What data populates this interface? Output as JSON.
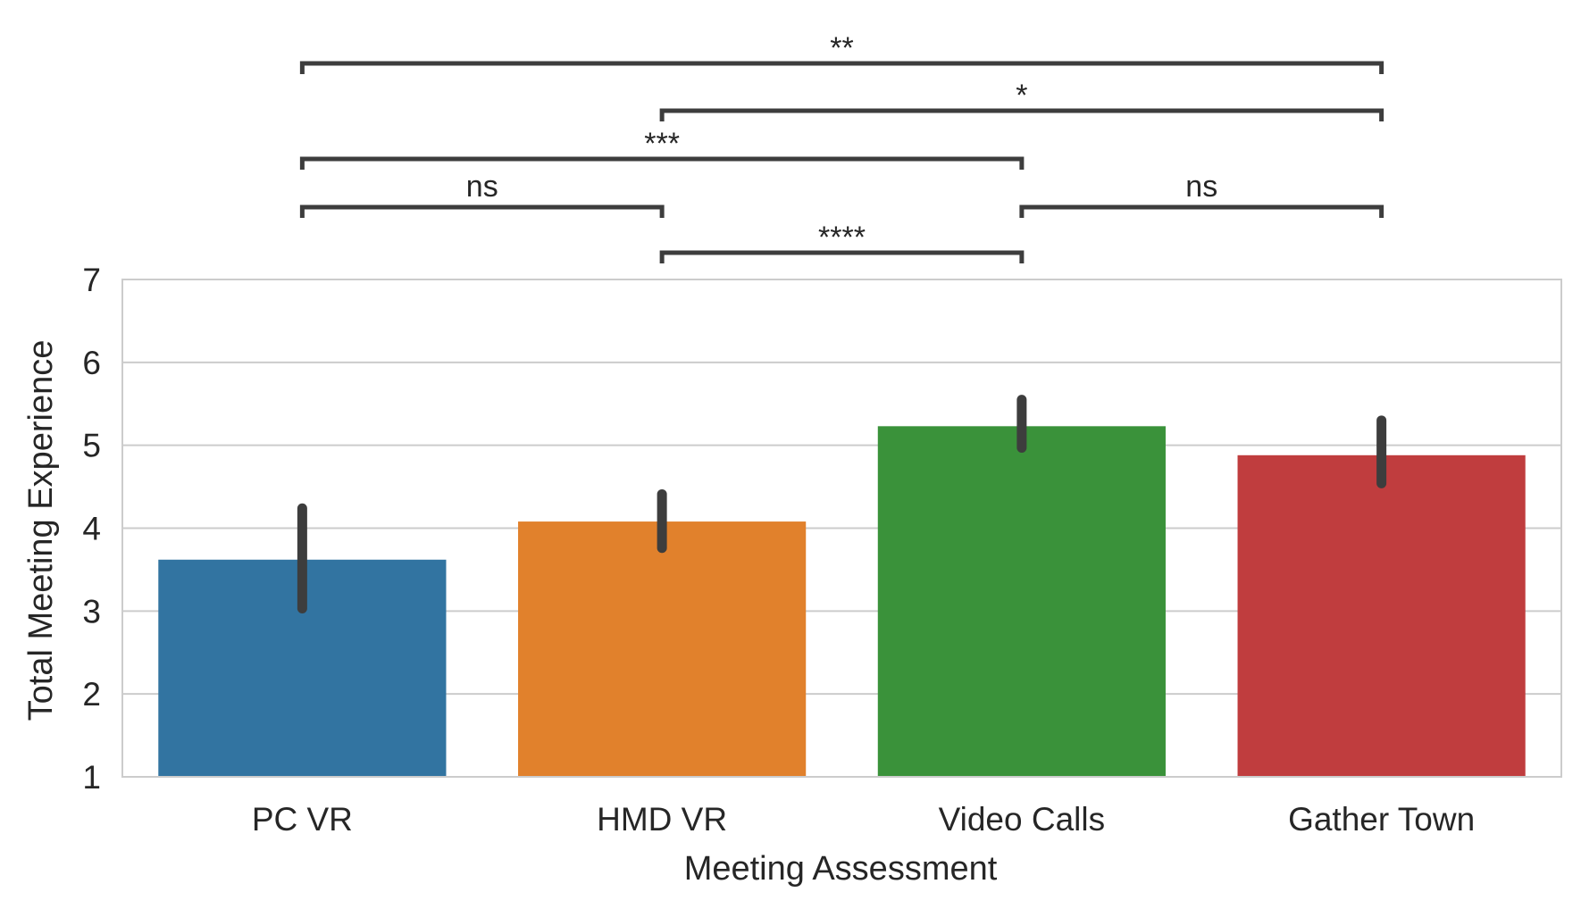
{
  "chart_data": {
    "type": "bar",
    "title": "",
    "xlabel": "Meeting Assessment",
    "ylabel": "Total Meeting Experience",
    "ylim": [
      1,
      7
    ],
    "yticks": [
      1,
      2,
      3,
      4,
      5,
      6,
      7
    ],
    "grid": "horizontal",
    "legend": "none",
    "categories": [
      "PC VR",
      "HMD VR",
      "Video Calls",
      "Gather Town"
    ],
    "values": [
      3.62,
      4.08,
      5.23,
      4.88
    ],
    "error_bars": [
      [
        3.03,
        4.24
      ],
      [
        3.76,
        4.41
      ],
      [
        4.97,
        5.55
      ],
      [
        4.54,
        5.3
      ]
    ],
    "colors": [
      "#3274a1",
      "#e1812c",
      "#3a923a",
      "#c03d3e"
    ],
    "significance": [
      {
        "pair": [
          "HMD VR",
          "Video Calls"
        ],
        "label": "****"
      },
      {
        "pair": [
          "PC VR",
          "HMD VR"
        ],
        "label": "ns"
      },
      {
        "pair": [
          "Video Calls",
          "Gather Town"
        ],
        "label": "ns"
      },
      {
        "pair": [
          "PC VR",
          "Video Calls"
        ],
        "label": "***"
      },
      {
        "pair": [
          "HMD VR",
          "Gather Town"
        ],
        "label": "*"
      },
      {
        "pair": [
          "PC VR",
          "Gather Town"
        ],
        "label": "**"
      }
    ]
  }
}
